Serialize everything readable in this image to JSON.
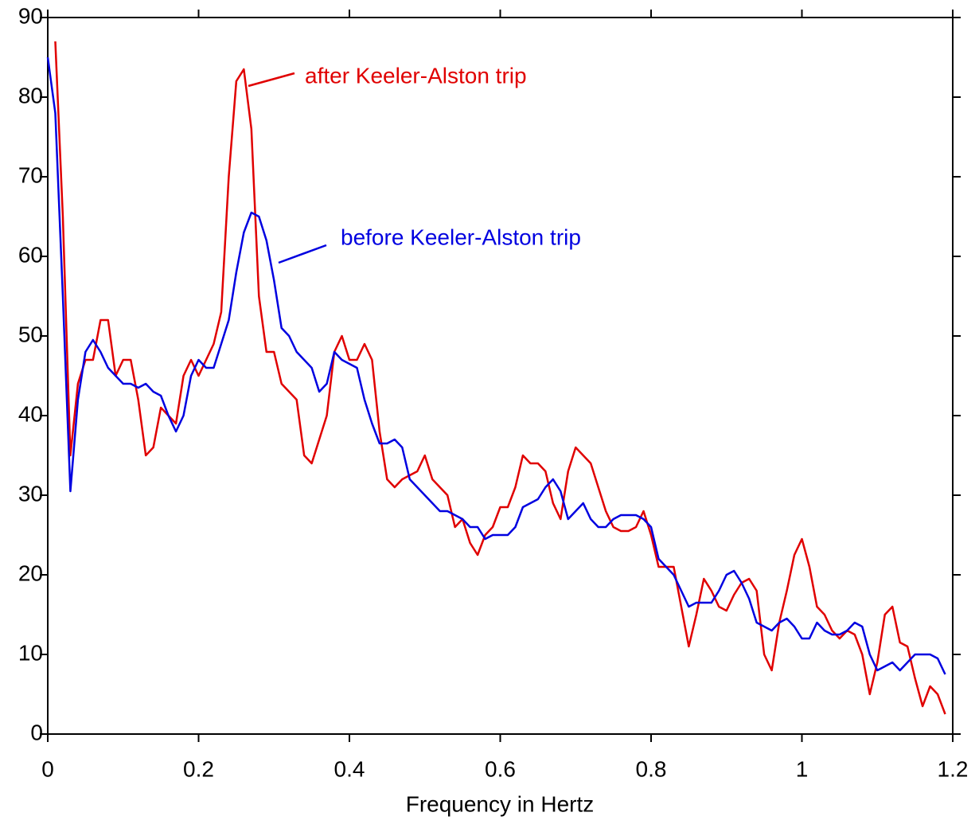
{
  "chart_data": {
    "type": "line",
    "xlabel": "Frequency in Hertz",
    "x": [
      0,
      0.01,
      0.02,
      0.03,
      0.04,
      0.05,
      0.06,
      0.07,
      0.08,
      0.09,
      0.1,
      0.11,
      0.12,
      0.13,
      0.14,
      0.15,
      0.16,
      0.17,
      0.18,
      0.19,
      0.2,
      0.21,
      0.22,
      0.23,
      0.24,
      0.25,
      0.26,
      0.27,
      0.28,
      0.29,
      0.3,
      0.31,
      0.32,
      0.33,
      0.34,
      0.35,
      0.36,
      0.37,
      0.38,
      0.39,
      0.4,
      0.41,
      0.42,
      0.43,
      0.44,
      0.45,
      0.46,
      0.47,
      0.48,
      0.49,
      0.5,
      0.51,
      0.52,
      0.53,
      0.54,
      0.55,
      0.56,
      0.57,
      0.58,
      0.59,
      0.6,
      0.61,
      0.62,
      0.63,
      0.64,
      0.65,
      0.66,
      0.67,
      0.68,
      0.69,
      0.7,
      0.71,
      0.72,
      0.73,
      0.74,
      0.75,
      0.76,
      0.77,
      0.78,
      0.79,
      0.8,
      0.81,
      0.82,
      0.83,
      0.84,
      0.85,
      0.86,
      0.87,
      0.88,
      0.89,
      0.9,
      0.91,
      0.92,
      0.93,
      0.94,
      0.95,
      0.96,
      0.97,
      0.98,
      0.99,
      1,
      1.01,
      1.02,
      1.03,
      1.04,
      1.05,
      1.06,
      1.07,
      1.08,
      1.09,
      1.1,
      1.11,
      1.12,
      1.13,
      1.14,
      1.15,
      1.16,
      1.17,
      1.18,
      1.19
    ],
    "series": [
      {
        "name": "after Keeler-Alston trip",
        "color": "#e00000",
        "values": [
          null,
          87,
          65,
          35,
          44,
          47,
          47,
          52,
          52,
          45,
          47,
          47,
          42,
          35,
          36,
          41,
          40,
          39,
          45,
          47,
          45,
          47,
          49,
          53,
          70,
          82,
          83.5,
          76,
          55,
          48,
          48,
          44,
          43,
          42,
          35,
          34,
          37,
          40,
          48,
          50,
          47,
          47,
          49,
          47,
          38,
          32,
          31,
          32,
          32.5,
          33,
          35,
          32,
          31,
          30,
          26,
          27,
          24,
          22.5,
          25,
          26,
          28.5,
          28.5,
          31,
          35,
          34,
          34,
          33,
          29,
          27,
          33,
          36,
          35,
          34,
          31,
          28,
          26,
          25.5,
          25.5,
          26,
          28,
          25,
          21,
          21,
          21,
          16,
          11,
          15,
          19.5,
          18,
          16,
          15.5,
          17.5,
          19,
          19.5,
          18,
          10,
          8,
          14,
          18,
          22.5,
          24.5,
          21,
          16,
          15,
          13,
          12,
          13,
          12.5,
          10,
          5,
          9,
          15,
          16,
          11.5,
          11,
          7,
          3.5,
          6,
          5,
          2.5
        ]
      },
      {
        "name": "before Keeler-Alston trip",
        "color": "#0000e0",
        "values": [
          85,
          78,
          55,
          30.5,
          42,
          48,
          49.5,
          48,
          46,
          45,
          44,
          44,
          43.5,
          44,
          43,
          42.5,
          40,
          38,
          40,
          45,
          47,
          46,
          46,
          49,
          52,
          58,
          63,
          65.5,
          65,
          62,
          57,
          51,
          50,
          48,
          47,
          46,
          43,
          44,
          48,
          47,
          46.5,
          46,
          42,
          39,
          36.5,
          36.5,
          37,
          36,
          32,
          31,
          30,
          29,
          28,
          28,
          27.5,
          27,
          26,
          26,
          24.5,
          25,
          25,
          25,
          26,
          28.5,
          29,
          29.5,
          31,
          32,
          30.5,
          27,
          28,
          29,
          27,
          26,
          26,
          27,
          27.5,
          27.5,
          27.5,
          27,
          26,
          22,
          21,
          20,
          18,
          16,
          16.5,
          16.5,
          16.5,
          18,
          20,
          20.5,
          19,
          17,
          14,
          13.5,
          13,
          14,
          14.5,
          13.5,
          12,
          12,
          14,
          13,
          12.5,
          12.5,
          13,
          14,
          13.5,
          10,
          8,
          8.5,
          9,
          8,
          9,
          10,
          10,
          10,
          9.5,
          7.5
        ]
      }
    ],
    "xlim": [
      0,
      1.2
    ],
    "ylim": [
      0,
      90
    ],
    "xticks": [
      0,
      0.2,
      0.4,
      0.6,
      0.8,
      1,
      1.2
    ],
    "yticks": [
      0,
      10,
      20,
      30,
      40,
      50,
      60,
      70,
      80,
      90
    ]
  }
}
